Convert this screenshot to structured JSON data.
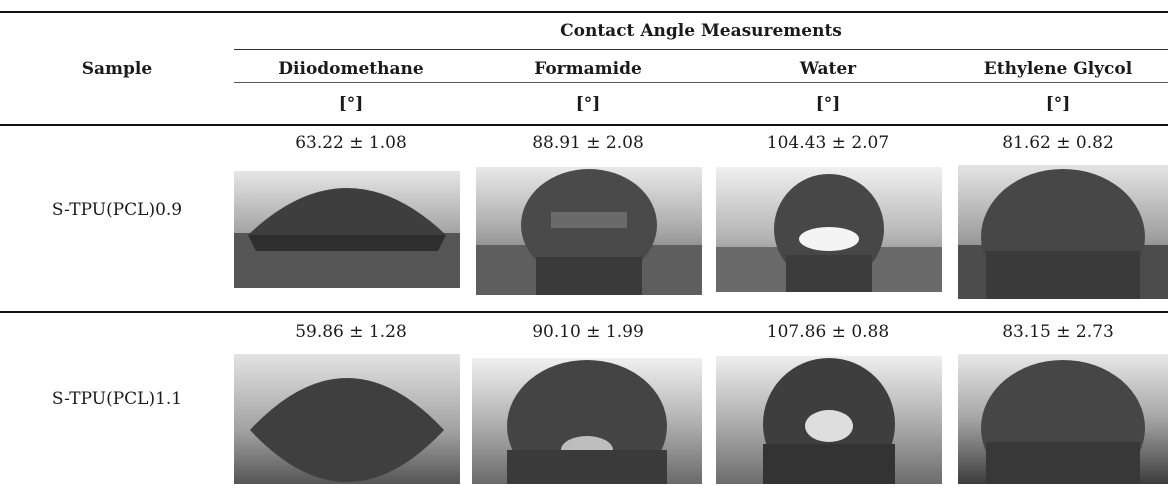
{
  "table": {
    "group_header": "Contact Angle Measurements",
    "sample_header": "Sample",
    "columns": [
      "Diiodomethane",
      "Formamide",
      "Water",
      "Ethylene Glycol"
    ],
    "unit": "[°]",
    "rows": [
      {
        "sample": "S-TPU(PCL)0.9",
        "values": [
          "63.22 ± 1.08",
          "88.91 ± 2.08",
          "104.43 ± 2.07",
          "81.62 ± 0.82"
        ]
      },
      {
        "sample": "S-TPU(PCL)1.1",
        "values": [
          "59.86 ± 1.28",
          "90.10 ± 1.99",
          "107.86 ± 0.88",
          "83.15 ± 2.73"
        ]
      }
    ]
  }
}
